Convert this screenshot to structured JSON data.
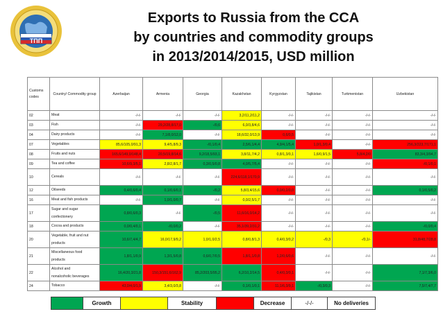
{
  "title": {
    "line1": "Exports to Russia from the CCA",
    "line2": "by countries and commodity groups",
    "line3": "in 2013/2014/2015, USD million"
  },
  "table": {
    "header": {
      "codes": "Customs codes",
      "group": "Country/ Commodity group",
      "countries": [
        "Azerbaijan",
        "Armenia",
        "Georgia",
        "Kazakhstan",
        "Kyrgyzstan",
        "Tajikistan",
        "Turkmenistan",
        "Uzbekistan"
      ]
    },
    "rows": [
      {
        "code": "02",
        "name": [
          "Meat"
        ],
        "cells": [
          [
            "-/-/-",
            ""
          ],
          [
            "-/-/-",
            ""
          ],
          [
            "-/-/-",
            ""
          ],
          [
            "3,2/11,2/11,2",
            "y"
          ],
          [
            "-/-/-",
            ""
          ],
          [
            "-/-/-",
            ""
          ],
          [
            "-/-/-",
            ""
          ],
          [
            "-/-/-",
            ""
          ]
        ]
      },
      {
        "code": "03",
        "name": [
          "Fish"
        ],
        "cells": [
          [
            "-/-/-",
            ""
          ],
          [
            "29,2/28,8/17,0",
            "r"
          ],
          [
            "-/0,6",
            "g"
          ],
          [
            "6,0/3,8/4,6",
            "y"
          ],
          [
            "-/-/-",
            ""
          ],
          [
            "-/-/-",
            ""
          ],
          [
            "-/-/-",
            ""
          ],
          [
            "-/-/-",
            ""
          ]
        ]
      },
      {
        "code": "04",
        "name": [
          "Dairy products"
        ],
        "cells": [
          [
            "-/-/-",
            ""
          ],
          [
            "7,1/8,0/12,0",
            "g"
          ],
          [
            "-/-/-",
            ""
          ],
          [
            "18,6/32,0/13,9",
            "y"
          ],
          [
            "0,6/0,5",
            "r"
          ],
          [
            "-/-/-",
            ""
          ],
          [
            "-/-/-",
            ""
          ],
          [
            "-/-/-",
            ""
          ]
        ]
      },
      {
        "code": "07",
        "name": [
          "Vegetables"
        ],
        "cells": [
          [
            "85,6/105,0/91,3",
            "y"
          ],
          [
            "9,4/5,8/9,3",
            "y"
          ],
          [
            "-/0,1/0,4",
            "g"
          ],
          [
            "2,5/6,1/4,4",
            "g"
          ],
          [
            "4,9/4,1/5,4",
            "g"
          ],
          [
            "1,0/1,3/0,4",
            "r"
          ],
          [
            "-/-/-",
            ""
          ],
          [
            "256,3/223,7/171,1",
            "r"
          ]
        ]
      },
      {
        "code": "08",
        "name": [
          "Fruits and nuts"
        ],
        "cells": [
          [
            "165,6/149,0/148,4",
            "r"
          ],
          [
            "20,5/19,8/14,6",
            "r"
          ],
          [
            "9,2/18,5/93,1",
            "g"
          ],
          [
            "3,8/11,7/4,2",
            "y"
          ],
          [
            "0,8/1,3/0,1",
            "y"
          ],
          [
            "1,6/0,9/1,5",
            "y"
          ],
          [
            "5,8/4,2/0",
            "r"
          ],
          [
            "83,3/4,3/94,7",
            "g"
          ]
        ]
      },
      {
        "code": "09",
        "name": [
          "Tea and coffee"
        ],
        "cells": [
          [
            "10,6/9,3/5,1",
            "r"
          ],
          [
            "2,8/2,8/1,7",
            "y"
          ],
          [
            "0,3/0,5/0,8",
            "g"
          ],
          [
            "4,0/5,7/5,4",
            "g"
          ],
          [
            "-/-/-",
            ""
          ],
          [
            "-/-/-",
            ""
          ],
          [
            "-/-/-",
            ""
          ],
          [
            "-/0,1/0,1",
            "r"
          ]
        ]
      },
      {
        "code": "10",
        "name": [
          "Cereals"
        ],
        "tall": true,
        "cells": [
          [
            "-/-/-",
            ""
          ],
          [
            "-/-/-",
            ""
          ],
          [
            "-/-/-",
            ""
          ],
          [
            "224,6/118,1/170,9",
            "r"
          ],
          [
            "-/-/-",
            ""
          ],
          [
            "-/-/-",
            ""
          ],
          [
            "-/-/-",
            ""
          ],
          [
            "-/-/-",
            ""
          ]
        ]
      },
      {
        "code": "12",
        "name": [
          "Oilseeds"
        ],
        "cells": [
          [
            "0,4/0,6/0,4",
            "g"
          ],
          [
            "0,1/0,6/0,1",
            "g"
          ],
          [
            "-/0,2",
            "g"
          ],
          [
            "5,8/3,4/15,6",
            "y"
          ],
          [
            "0,0/0,2/0,0",
            "r"
          ],
          [
            "-/-/-",
            ""
          ],
          [
            "-/-/-",
            ""
          ],
          [
            "0,1/0,5/0,2",
            "g"
          ]
        ]
      },
      {
        "code": "16",
        "name": [
          "Meat and fish products"
        ],
        "cells": [
          [
            "-/-/-",
            ""
          ],
          [
            "1,0/1,0/0,7",
            "g"
          ],
          [
            "-/-/-",
            ""
          ],
          [
            "0,0/2,5/1,7",
            "y"
          ],
          [
            "-/-/-",
            ""
          ],
          [
            "-/-/-",
            ""
          ],
          [
            "-/-/-",
            ""
          ],
          [
            "-/-/-",
            ""
          ]
        ]
      },
      {
        "code": "17",
        "name": [
          "Sugar and sugar",
          "confectionery"
        ],
        "tall": true,
        "cells": [
          [
            "0,8/0,6/0,3",
            "g"
          ],
          [
            "-/-/-",
            ""
          ],
          [
            "-/0,5",
            "g"
          ],
          [
            "11,6/16,0/14,2",
            "r"
          ],
          [
            "-/-/-",
            ""
          ],
          [
            "-/-/-",
            ""
          ],
          [
            "-/-/-",
            ""
          ],
          [
            "-/-/-",
            ""
          ]
        ]
      },
      {
        "code": "18",
        "name": [
          "Cocoa and products"
        ],
        "cells": [
          [
            "0,0/0,4/0,1",
            "g"
          ],
          [
            "-/0,0/0,2",
            "g"
          ],
          [
            "-/-/-",
            ""
          ],
          [
            "35,1/39,2/31,2",
            "r"
          ],
          [
            "-/-/-",
            ""
          ],
          [
            "-/-/-",
            ""
          ],
          [
            "-/-/-",
            ""
          ],
          [
            "-/0,0/0,4",
            "g"
          ]
        ]
      },
      {
        "code": "20",
        "name": [
          "Vegetable, fruit and nut",
          "products"
        ],
        "tall": true,
        "cells": [
          [
            "10,6/7,4/4,7",
            "g"
          ],
          [
            "16,0/17,9/9,2",
            "y"
          ],
          [
            "1,0/1,0/2,5",
            "y"
          ],
          [
            "0,8/0,8/1,3",
            "y"
          ],
          [
            "0,4/0,3/0,2",
            "y"
          ],
          [
            "-/0,3",
            "y"
          ],
          [
            "-/0,1/-",
            "y"
          ],
          [
            "31,8/48,7/28,8",
            "r"
          ]
        ]
      },
      {
        "code": "21",
        "name": [
          "Miscellaneous food",
          "products"
        ],
        "tall": true,
        "cells": [
          [
            "1,8/1,1/0,9",
            "g"
          ],
          [
            "1,3/1,5/0,8",
            "g"
          ],
          [
            "0,6/0,7/0,5",
            "g"
          ],
          [
            "1,8/1,1/0,8",
            "r"
          ],
          [
            "1,2/0,6/0,6",
            "r"
          ],
          [
            "-/-/-",
            ""
          ],
          [
            "-/-/-",
            ""
          ],
          [
            "-/-/-",
            ""
          ]
        ]
      },
      {
        "code": "22",
        "name": [
          "Alcohol and",
          "nonalcoholic beverages"
        ],
        "tall": true,
        "cells": [
          [
            "16,4/20,3/21,8",
            "g"
          ],
          [
            "150,3/151,6/162,9",
            "r"
          ],
          [
            "85,2/203,5/95,2",
            "g"
          ],
          [
            "6,2/10,2/14,5",
            "g"
          ],
          [
            "0,4/0,3/0,1",
            "r"
          ],
          [
            "-/-/-",
            ""
          ],
          [
            "-/-/-",
            ""
          ],
          [
            "7,1/7,3/6,0",
            "g"
          ]
        ]
      },
      {
        "code": "24",
        "name": [
          "Tobacco"
        ],
        "cells": [
          [
            "43,0/4,0/1,9",
            "r"
          ],
          [
            "3,4/3,0/3,8",
            "y"
          ],
          [
            "-/-/-",
            ""
          ],
          [
            "0,1/0,1/0,1",
            "g"
          ],
          [
            "11,1/6,3/9,1",
            "r"
          ],
          [
            "-/0,3/0,3",
            "g"
          ],
          [
            "-/-/-",
            ""
          ],
          [
            "7,5/7,4/7,7",
            "g"
          ]
        ]
      }
    ]
  },
  "legend": {
    "growth": "Growth",
    "stability": "Stability",
    "decrease": "Decrease",
    "none_symbol": "-/-/-",
    "none_label": "No deliveries"
  },
  "colors": {
    "growth": "#00a651",
    "stability": "#ffff00",
    "decrease": "#ff0000"
  }
}
